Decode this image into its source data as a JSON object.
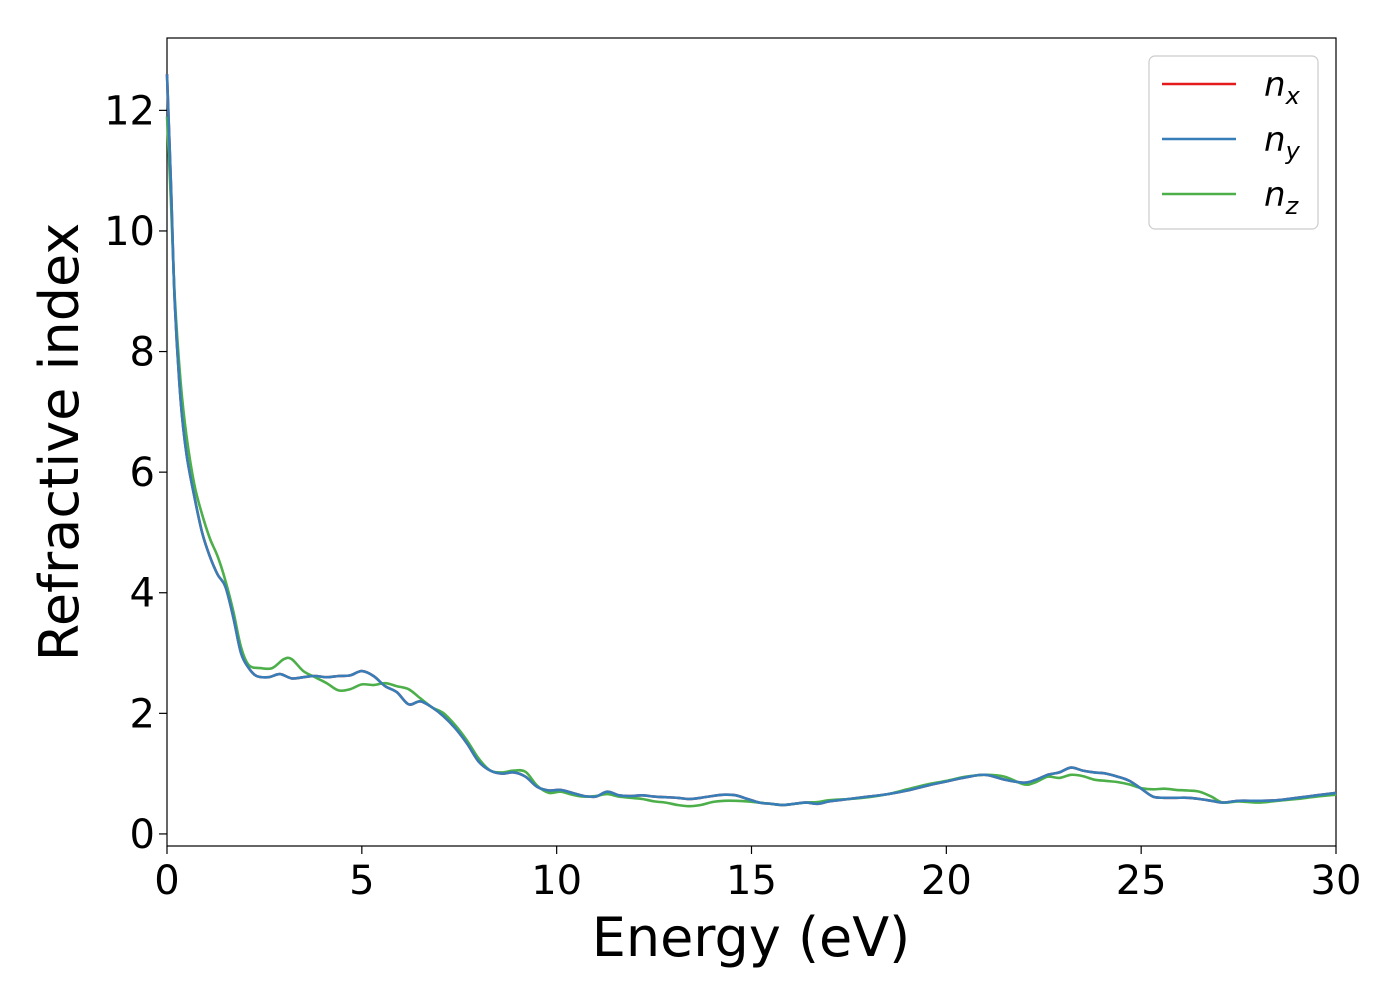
{
  "chart_data": {
    "type": "line",
    "xlabel": "Energy (eV)",
    "ylabel": "Refractive index",
    "xlim": [
      0,
      30
    ],
    "ylim": [
      -0.2,
      13.2
    ],
    "xticks": [
      "0",
      "5",
      "10",
      "15",
      "20",
      "25",
      "30"
    ],
    "yticks": [
      "0",
      "2",
      "4",
      "6",
      "8",
      "10",
      "12"
    ],
    "grid": false,
    "legend_position": "top-right",
    "series": [
      {
        "name": "n",
        "subscript": "x",
        "color": "#e41a1c",
        "x": [
          0,
          0.1,
          0.2,
          0.35,
          0.5,
          0.7,
          0.9,
          1.1,
          1.3,
          1.5,
          1.7,
          1.9,
          2.1,
          2.3,
          2.6,
          2.9,
          3.2,
          3.5,
          3.8,
          4.1,
          4.4,
          4.7,
          5.0,
          5.3,
          5.6,
          5.9,
          6.2,
          6.5,
          6.8,
          7.1,
          7.4,
          7.7,
          8.0,
          8.3,
          8.6,
          8.9,
          9.2,
          9.5,
          9.8,
          10.1,
          10.4,
          10.7,
          11.0,
          11.3,
          11.6,
          11.9,
          12.2,
          12.5,
          12.8,
          13.1,
          13.4,
          13.7,
          14.0,
          14.3,
          14.6,
          14.9,
          15.2,
          15.5,
          15.8,
          16.1,
          16.4,
          16.7,
          17.0,
          17.5,
          18.0,
          18.5,
          19.0,
          19.5,
          20.0,
          20.5,
          21.0,
          21.5,
          22.0,
          22.3,
          22.6,
          22.9,
          23.2,
          23.5,
          23.8,
          24.1,
          24.4,
          24.7,
          25.0,
          25.3,
          25.6,
          25.9,
          26.2,
          26.5,
          26.8,
          27.1,
          27.5,
          28.0,
          28.5,
          29.0,
          29.5,
          30.0
        ],
        "y": [
          12.6,
          10.8,
          8.8,
          7.2,
          6.3,
          5.6,
          5.0,
          4.6,
          4.3,
          4.1,
          3.6,
          3.0,
          2.75,
          2.62,
          2.6,
          2.65,
          2.58,
          2.6,
          2.62,
          2.6,
          2.62,
          2.63,
          2.7,
          2.62,
          2.45,
          2.35,
          2.15,
          2.2,
          2.1,
          1.95,
          1.75,
          1.5,
          1.2,
          1.05,
          1.0,
          1.02,
          0.95,
          0.78,
          0.72,
          0.73,
          0.68,
          0.63,
          0.62,
          0.7,
          0.64,
          0.63,
          0.64,
          0.62,
          0.61,
          0.6,
          0.58,
          0.6,
          0.63,
          0.65,
          0.64,
          0.58,
          0.52,
          0.5,
          0.48,
          0.5,
          0.52,
          0.5,
          0.54,
          0.58,
          0.62,
          0.66,
          0.72,
          0.8,
          0.87,
          0.94,
          0.98,
          0.9,
          0.85,
          0.9,
          0.98,
          1.02,
          1.1,
          1.05,
          1.02,
          1.0,
          0.95,
          0.88,
          0.75,
          0.62,
          0.6,
          0.6,
          0.6,
          0.58,
          0.55,
          0.52,
          0.55,
          0.55,
          0.56,
          0.6,
          0.64,
          0.68
        ]
      },
      {
        "name": "n",
        "subscript": "y",
        "color": "#377eb8",
        "x": [
          0,
          0.1,
          0.2,
          0.35,
          0.5,
          0.7,
          0.9,
          1.1,
          1.3,
          1.5,
          1.7,
          1.9,
          2.1,
          2.3,
          2.6,
          2.9,
          3.2,
          3.5,
          3.8,
          4.1,
          4.4,
          4.7,
          5.0,
          5.3,
          5.6,
          5.9,
          6.2,
          6.5,
          6.8,
          7.1,
          7.4,
          7.7,
          8.0,
          8.3,
          8.6,
          8.9,
          9.2,
          9.5,
          9.8,
          10.1,
          10.4,
          10.7,
          11.0,
          11.3,
          11.6,
          11.9,
          12.2,
          12.5,
          12.8,
          13.1,
          13.4,
          13.7,
          14.0,
          14.3,
          14.6,
          14.9,
          15.2,
          15.5,
          15.8,
          16.1,
          16.4,
          16.7,
          17.0,
          17.5,
          18.0,
          18.5,
          19.0,
          19.5,
          20.0,
          20.5,
          21.0,
          21.5,
          22.0,
          22.3,
          22.6,
          22.9,
          23.2,
          23.5,
          23.8,
          24.1,
          24.4,
          24.7,
          25.0,
          25.3,
          25.6,
          25.9,
          26.2,
          26.5,
          26.8,
          27.1,
          27.5,
          28.0,
          28.5,
          29.0,
          29.5,
          30.0
        ],
        "y": [
          12.6,
          10.8,
          8.8,
          7.2,
          6.3,
          5.6,
          5.0,
          4.6,
          4.3,
          4.1,
          3.6,
          3.0,
          2.75,
          2.62,
          2.6,
          2.65,
          2.58,
          2.6,
          2.62,
          2.6,
          2.62,
          2.63,
          2.7,
          2.62,
          2.45,
          2.35,
          2.15,
          2.2,
          2.1,
          1.95,
          1.75,
          1.5,
          1.2,
          1.05,
          1.0,
          1.02,
          0.95,
          0.78,
          0.72,
          0.73,
          0.68,
          0.63,
          0.62,
          0.7,
          0.64,
          0.63,
          0.64,
          0.62,
          0.61,
          0.6,
          0.58,
          0.6,
          0.63,
          0.65,
          0.64,
          0.58,
          0.52,
          0.5,
          0.48,
          0.5,
          0.52,
          0.5,
          0.54,
          0.58,
          0.62,
          0.66,
          0.72,
          0.8,
          0.87,
          0.94,
          0.98,
          0.9,
          0.85,
          0.9,
          0.98,
          1.02,
          1.1,
          1.05,
          1.02,
          1.0,
          0.95,
          0.88,
          0.75,
          0.62,
          0.6,
          0.6,
          0.6,
          0.58,
          0.55,
          0.52,
          0.55,
          0.55,
          0.56,
          0.6,
          0.64,
          0.68
        ]
      },
      {
        "name": "n",
        "subscript": "z",
        "color": "#4daf4a",
        "x": [
          0,
          0.1,
          0.2,
          0.35,
          0.5,
          0.7,
          0.9,
          1.1,
          1.3,
          1.5,
          1.7,
          1.9,
          2.1,
          2.4,
          2.7,
          3.0,
          3.2,
          3.5,
          3.8,
          4.1,
          4.4,
          4.7,
          5.0,
          5.3,
          5.6,
          5.9,
          6.2,
          6.5,
          6.8,
          7.1,
          7.4,
          7.7,
          8.0,
          8.3,
          8.6,
          8.9,
          9.2,
          9.5,
          9.8,
          10.1,
          10.4,
          10.7,
          11.0,
          11.3,
          11.6,
          11.9,
          12.2,
          12.5,
          12.8,
          13.1,
          13.4,
          13.7,
          14.0,
          14.3,
          14.6,
          14.9,
          15.2,
          15.5,
          15.8,
          16.1,
          16.4,
          16.7,
          17.0,
          17.5,
          18.0,
          18.5,
          19.0,
          19.5,
          20.0,
          20.5,
          21.0,
          21.5,
          22.0,
          22.3,
          22.6,
          22.9,
          23.2,
          23.5,
          23.8,
          24.1,
          24.4,
          24.7,
          25.0,
          25.3,
          25.6,
          25.9,
          26.2,
          26.5,
          26.8,
          27.1,
          27.5,
          28.0,
          28.5,
          29.0,
          29.5,
          30.0
        ],
        "y": [
          11.9,
          10.5,
          8.9,
          7.5,
          6.6,
          5.8,
          5.3,
          4.9,
          4.6,
          4.2,
          3.7,
          3.1,
          2.8,
          2.75,
          2.75,
          2.9,
          2.9,
          2.7,
          2.6,
          2.5,
          2.38,
          2.4,
          2.48,
          2.47,
          2.5,
          2.45,
          2.4,
          2.25,
          2.1,
          2.0,
          1.8,
          1.55,
          1.25,
          1.05,
          1.02,
          1.05,
          1.03,
          0.8,
          0.68,
          0.7,
          0.65,
          0.62,
          0.63,
          0.66,
          0.62,
          0.6,
          0.58,
          0.54,
          0.52,
          0.48,
          0.46,
          0.48,
          0.53,
          0.55,
          0.55,
          0.54,
          0.52,
          0.5,
          0.48,
          0.5,
          0.52,
          0.53,
          0.56,
          0.58,
          0.61,
          0.66,
          0.74,
          0.82,
          0.88,
          0.95,
          0.98,
          0.95,
          0.82,
          0.86,
          0.95,
          0.93,
          0.98,
          0.96,
          0.9,
          0.88,
          0.86,
          0.82,
          0.76,
          0.74,
          0.75,
          0.73,
          0.72,
          0.7,
          0.62,
          0.52,
          0.54,
          0.52,
          0.55,
          0.58,
          0.62,
          0.65
        ]
      }
    ]
  }
}
